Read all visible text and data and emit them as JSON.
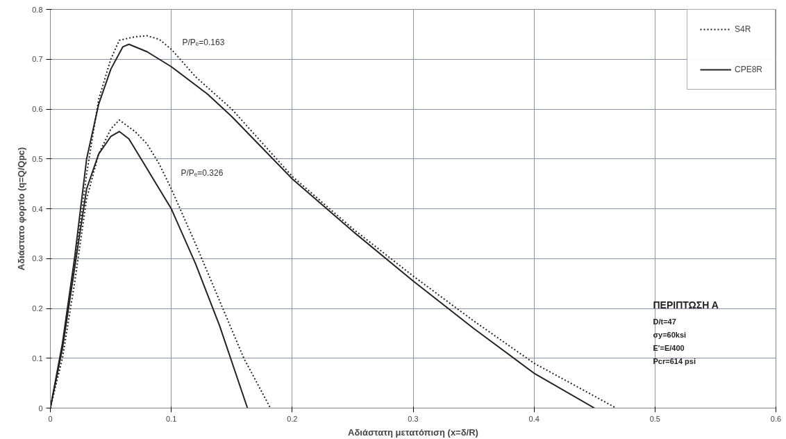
{
  "chart_data": {
    "type": "line",
    "xlabel": "Αδιάστατη μετατόπιση (x=δ/R)",
    "ylabel": "Αδιάστατο φορτίο (q=Q/Qpc)",
    "xlim": [
      0,
      0.6
    ],
    "xticks": [
      0,
      0.1,
      0.2,
      0.3,
      0.4,
      0.5,
      0.6
    ],
    "ylim": [
      0,
      0.8
    ],
    "yticks": [
      0,
      0.1,
      0.2,
      0.3,
      0.4,
      0.5,
      0.6,
      0.7,
      0.8
    ],
    "grid": true,
    "legend": "top right",
    "marker": "none",
    "series": [
      {
        "name": "S4R",
        "color": "#222222",
        "line_style": "dotted",
        "x": [
          0,
          0.01,
          0.02,
          0.03,
          0.04,
          0.05,
          0.057,
          0.07,
          0.08,
          0.09,
          0.1,
          0.12,
          0.15,
          0.2,
          0.25,
          0.3,
          0.35,
          0.4,
          0.468
        ],
        "values": [
          0,
          0.12,
          0.28,
          0.47,
          0.62,
          0.7,
          0.738,
          0.745,
          0.747,
          0.74,
          0.72,
          0.665,
          0.6,
          0.465,
          0.36,
          0.265,
          0.175,
          0.09,
          0
        ]
      },
      {
        "name": "CPE8R",
        "color": "#222222",
        "line_style": "solid",
        "x": [
          0,
          0.01,
          0.02,
          0.03,
          0.04,
          0.05,
          0.06,
          0.065,
          0.08,
          0.1,
          0.13,
          0.15,
          0.2,
          0.25,
          0.3,
          0.35,
          0.4,
          0.45
        ],
        "values": [
          0,
          0.13,
          0.3,
          0.5,
          0.61,
          0.68,
          0.725,
          0.73,
          0.715,
          0.685,
          0.63,
          0.585,
          0.46,
          0.355,
          0.255,
          0.16,
          0.07,
          0
        ]
      },
      {
        "color": "#222222",
        "line_style": "dotted",
        "x": [
          0,
          0.01,
          0.02,
          0.03,
          0.04,
          0.05,
          0.057,
          0.07,
          0.08,
          0.09,
          0.1,
          0.12,
          0.14,
          0.16,
          0.182
        ],
        "values": [
          0,
          0.1,
          0.25,
          0.42,
          0.51,
          0.56,
          0.578,
          0.555,
          0.53,
          0.49,
          0.44,
          0.33,
          0.215,
          0.1,
          0
        ]
      },
      {
        "color": "#222222",
        "line_style": "solid",
        "x": [
          0,
          0.01,
          0.02,
          0.03,
          0.04,
          0.05,
          0.057,
          0.065,
          0.08,
          0.1,
          0.12,
          0.14,
          0.163
        ],
        "values": [
          0,
          0.12,
          0.28,
          0.44,
          0.51,
          0.545,
          0.555,
          0.54,
          0.48,
          0.4,
          0.29,
          0.165,
          0
        ]
      }
    ],
    "annotations": [
      "P/Pₑ=0.163",
      "P/Pₑ=0.326",
      "ΠΕΡΙΠΤΩΣΗ Α",
      "D/t=47",
      "σy=60ksi",
      "E'=E/400",
      "Pcr=614 psi"
    ]
  }
}
